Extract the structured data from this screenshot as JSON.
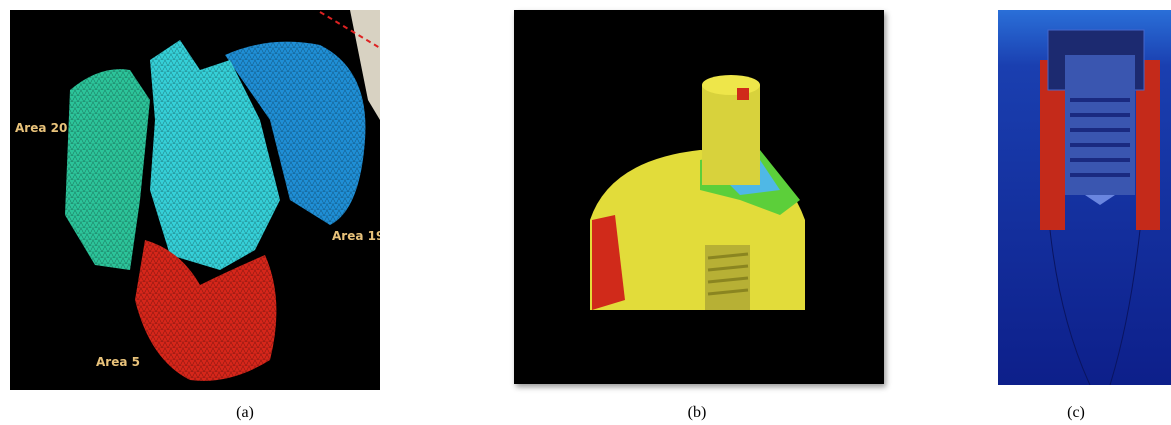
{
  "panels": [
    {
      "caption": "(a)",
      "labels": [
        "Area 20",
        "Area 19",
        "Area 5"
      ]
    },
    {
      "caption": "(b)"
    },
    {
      "caption": "(c)"
    }
  ]
}
